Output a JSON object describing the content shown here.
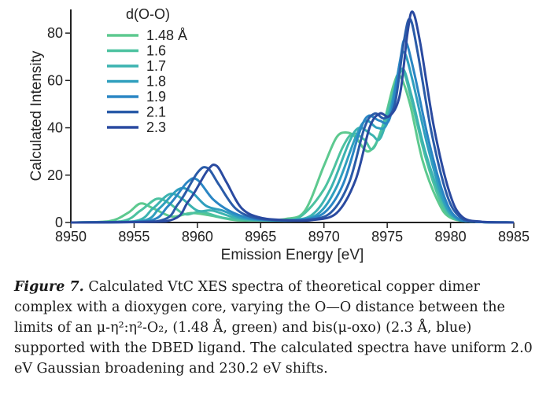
{
  "chart_data": {
    "type": "line",
    "xlabel": "Emission Energy [eV]",
    "ylabel": "Calculated Intensity",
    "xlim": [
      8950,
      8985
    ],
    "ylim": [
      0,
      90
    ],
    "x_ticks": [
      "8950",
      "8955",
      "8960",
      "8965",
      "8970",
      "8975",
      "8980",
      "8985"
    ],
    "y_ticks": [
      "0",
      "20",
      "40",
      "60",
      "80"
    ],
    "legend_title": "d(O-O)",
    "legend_position": "top-left",
    "grid": false,
    "series": [
      {
        "name": "1.48 Å",
        "color": "#5dc98f",
        "x": [
          8950,
          8953,
          8954.5,
          8955.5,
          8956.5,
          8958,
          8959.5,
          8961,
          8963,
          8965,
          8967,
          8968.5,
          8970,
          8971,
          8971.8,
          8972.5,
          8973.5,
          8974.5,
          8975.5,
          8976,
          8976.8,
          8977.8,
          8979,
          8980,
          8982,
          8985
        ],
        "y": [
          0,
          0.5,
          4,
          8,
          6,
          2.5,
          4,
          3,
          1,
          1,
          1.5,
          5,
          24,
          36,
          38,
          36,
          30,
          38,
          58,
          62,
          50,
          26,
          9,
          2,
          0.3,
          0
        ]
      },
      {
        "name": "1.6",
        "color": "#4cc2a0",
        "x": [
          8950,
          8954,
          8955.5,
          8956.8,
          8957.8,
          8959,
          8960.3,
          8962,
          8964,
          8966,
          8968,
          8970,
          8971.5,
          8972.3,
          8973.2,
          8974,
          8975.5,
          8976.2,
          8976.9,
          8978,
          8979.2,
          8980.2,
          8982,
          8985
        ],
        "y": [
          0,
          0.5,
          5,
          10,
          8,
          3.5,
          4.5,
          2,
          1,
          1,
          2,
          14,
          32,
          37.5,
          35,
          32,
          55,
          64,
          52,
          28,
          9,
          2,
          0.3,
          0
        ]
      },
      {
        "name": "1.7",
        "color": "#3cb3b0",
        "x": [
          8950,
          8955,
          8956.5,
          8957.8,
          8958.8,
          8960,
          8961.2,
          8963,
          8965,
          8967,
          8969,
          8970.5,
          8972,
          8972.8,
          8973.8,
          8974.5,
          8975.6,
          8976.2,
          8976.9,
          8978,
          8979.3,
          8980.3,
          8982,
          8985
        ],
        "y": [
          0,
          0.5,
          6,
          12,
          10,
          5,
          5,
          2,
          1,
          1,
          3,
          14,
          34,
          40,
          37,
          36,
          55,
          65,
          54,
          30,
          10,
          2,
          0.3,
          0
        ]
      },
      {
        "name": "1.8",
        "color": "#2f9fbe",
        "x": [
          8950,
          8955.5,
          8957,
          8958.5,
          8959.5,
          8960.7,
          8962,
          8963.5,
          8965.5,
          8967.5,
          8969.5,
          8971,
          8972.5,
          8973.3,
          8974.2,
          8975,
          8975.8,
          8976.3,
          8977,
          8978.2,
          8979.4,
          8980.4,
          8982,
          8985
        ],
        "y": [
          0,
          0.5,
          6,
          14,
          13,
          7,
          5,
          2,
          1,
          1,
          3.5,
          15,
          36,
          43,
          40,
          42,
          62,
          72,
          60,
          32,
          10,
          2,
          0.3,
          0
        ]
      },
      {
        "name": "1.9",
        "color": "#2a86c4",
        "x": [
          8950,
          8956,
          8957.7,
          8959.2,
          8960,
          8961.2,
          8962.5,
          8964,
          8966,
          8968,
          8970,
          8971.5,
          8972.8,
          8973.5,
          8974.4,
          8975.2,
          8976,
          8976.4,
          8977.1,
          8978.3,
          8979.5,
          8980.5,
          8982,
          8985
        ],
        "y": [
          0,
          0.5,
          7,
          17,
          18,
          10,
          5,
          2,
          1,
          1,
          4,
          16,
          38,
          45,
          43,
          44,
          68,
          77,
          64,
          34,
          11,
          2,
          0.3,
          0
        ]
      },
      {
        "name": "2.1",
        "color": "#2a5ba8",
        "x": [
          8950,
          8956.8,
          8958.5,
          8960,
          8960.8,
          8961.7,
          8963,
          8964.5,
          8966.5,
          8968.5,
          8970.5,
          8972,
          8973.2,
          8974,
          8974.8,
          8975.6,
          8976.3,
          8976.8,
          8977.4,
          8978.5,
          8979.7,
          8980.7,
          8982,
          8985
        ],
        "y": [
          0,
          0.5,
          8,
          21,
          23,
          16,
          6,
          2,
          1,
          1,
          4,
          17,
          40,
          46,
          44,
          50,
          76,
          86,
          72,
          38,
          12,
          2.5,
          0.3,
          0
        ]
      },
      {
        "name": "2.3",
        "color": "#2a4aa0",
        "x": [
          8950,
          8957.5,
          8959.3,
          8960.8,
          8961.5,
          8962.3,
          8963.5,
          8965,
          8967,
          8969,
          8971,
          8972.5,
          8973.6,
          8974.4,
          8975.2,
          8976,
          8976.6,
          8977,
          8977.6,
          8978.7,
          8979.9,
          8980.9,
          8982.5,
          8985
        ],
        "y": [
          0,
          0.5,
          9,
          22,
          24,
          17,
          6,
          2,
          1,
          1,
          4,
          18,
          40,
          46,
          45,
          54,
          80,
          89,
          76,
          40,
          13,
          2.5,
          0.3,
          0
        ]
      }
    ]
  },
  "caption": {
    "label": "Figure 7.",
    "text": "Calculated VtC XES spectra of theoretical copper dimer complex with a dioxygen core, varying the O—O distance between the limits of an μ-η²:η²-O₂, (1.48 Å, green) and bis(μ-oxo) (2.3 Å, blue) supported with the DBED ligand. The calculated spectra have uniform 2.0 eV Gaussian broadening and 230.2 eV shifts."
  }
}
